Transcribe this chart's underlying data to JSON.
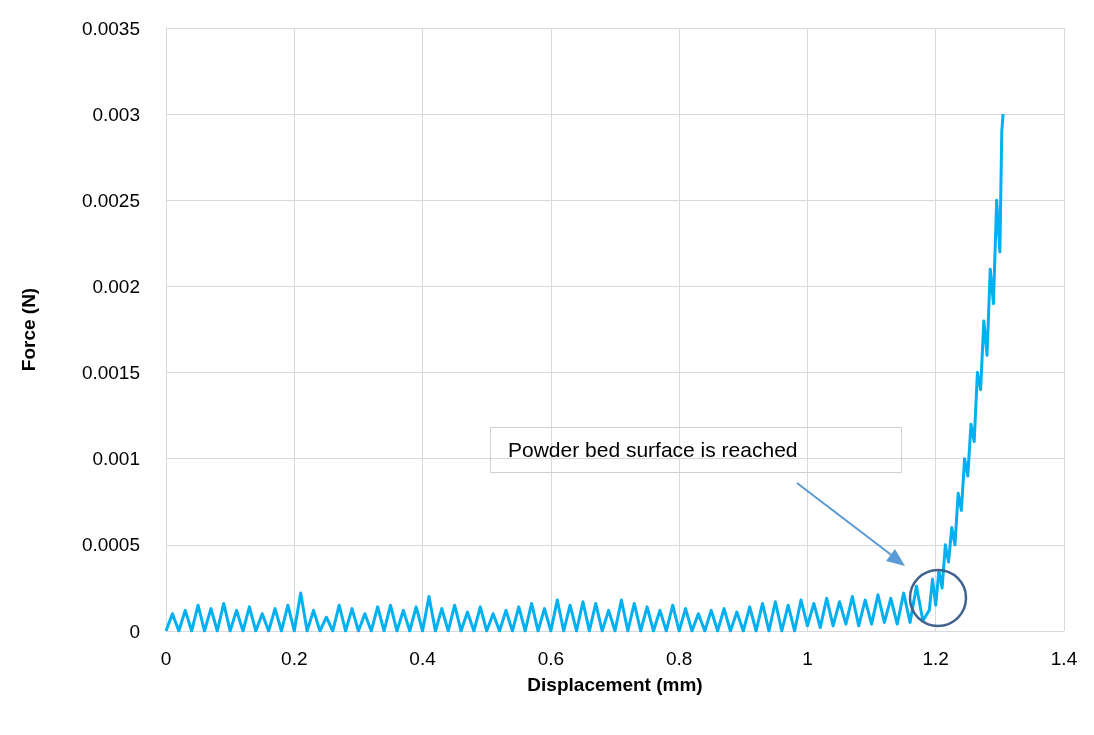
{
  "chart_data": {
    "type": "line",
    "xlabel": "Displacement (mm)",
    "ylabel": "Force (N)",
    "xlim": [
      0,
      1.4
    ],
    "xticks": [
      0,
      0.2,
      0.4,
      0.6,
      0.8,
      1,
      1.2,
      1.4
    ],
    "ylim": [
      0,
      0.0035
    ],
    "yticks": [
      0,
      0.0005,
      0.001,
      0.0015,
      0.002,
      0.0025,
      0.003,
      0.0035
    ],
    "grid": true,
    "marker": "none",
    "line_style": "solid",
    "annotations": [
      "Powder bed surface is reached"
    ],
    "series": [
      {
        "color": "#00b0f0",
        "x": [
          0,
          0.01,
          0.02,
          0.03,
          0.04,
          0.05,
          0.06,
          0.07,
          0.08,
          0.09,
          0.1,
          0.11,
          0.12,
          0.13,
          0.14,
          0.15,
          0.16,
          0.17,
          0.18,
          0.19,
          0.2,
          0.21,
          0.22,
          0.23,
          0.24,
          0.25,
          0.26,
          0.27,
          0.28,
          0.29,
          0.3,
          0.31,
          0.32,
          0.33,
          0.34,
          0.35,
          0.36,
          0.37,
          0.38,
          0.39,
          0.4,
          0.41,
          0.42,
          0.43,
          0.44,
          0.45,
          0.46,
          0.47,
          0.48,
          0.49,
          0.5,
          0.51,
          0.52,
          0.53,
          0.54,
          0.55,
          0.56,
          0.57,
          0.58,
          0.59,
          0.6,
          0.61,
          0.62,
          0.63,
          0.64,
          0.65,
          0.66,
          0.67,
          0.68,
          0.69,
          0.7,
          0.71,
          0.72,
          0.73,
          0.74,
          0.75,
          0.76,
          0.77,
          0.78,
          0.79,
          0.8,
          0.81,
          0.82,
          0.83,
          0.84,
          0.85,
          0.86,
          0.87,
          0.88,
          0.89,
          0.9,
          0.91,
          0.92,
          0.93,
          0.94,
          0.95,
          0.96,
          0.97,
          0.98,
          0.99,
          1,
          1.01,
          1.02,
          1.03,
          1.04,
          1.05,
          1.06,
          1.07,
          1.08,
          1.09,
          1.1,
          1.11,
          1.12,
          1.13,
          1.14,
          1.15,
          1.16,
          1.17,
          1.18,
          1.19,
          1.195,
          1.2,
          1.205,
          1.21,
          1.215,
          1.22,
          1.225,
          1.23,
          1.235,
          1.24,
          1.245,
          1.25,
          1.255,
          1.26,
          1.265,
          1.27,
          1.275,
          1.28,
          1.285,
          1.29,
          1.295,
          1.3,
          1.303,
          1.305
        ],
        "values": [
          0,
          0.0001,
          0,
          0.00012,
          0,
          0.00015,
          0,
          0.00013,
          0,
          0.00016,
          0,
          0.00012,
          0,
          0.00014,
          0,
          0.0001,
          0,
          0.00013,
          0,
          0.00015,
          0,
          0.00022,
          0,
          0.00012,
          0,
          8e-05,
          0,
          0.00015,
          0,
          0.00013,
          0,
          0.0001,
          0,
          0.00014,
          0,
          0.00015,
          0,
          0.00012,
          0,
          0.00014,
          0,
          0.0002,
          0,
          0.00013,
          0,
          0.00015,
          0,
          0.00011,
          0,
          0.00014,
          0,
          0.0001,
          0,
          0.00012,
          0,
          0.00014,
          0,
          0.00016,
          0,
          0.00013,
          0,
          0.00018,
          0,
          0.00015,
          0,
          0.00017,
          0,
          0.00016,
          0,
          0.00012,
          0,
          0.00018,
          0,
          0.00016,
          0,
          0.00014,
          0,
          0.00012,
          0,
          0.00015,
          0,
          0.00013,
          0,
          0.0001,
          0,
          0.00012,
          0,
          0.00013,
          0,
          0.00011,
          0,
          0.00014,
          0,
          0.00016,
          0,
          0.00017,
          0,
          0.00015,
          0,
          0.00018,
          3e-05,
          0.00016,
          2e-05,
          0.00019,
          3e-05,
          0.00017,
          4e-05,
          0.0002,
          3e-05,
          0.00018,
          4e-05,
          0.00021,
          5e-05,
          0.00019,
          4e-05,
          0.00022,
          5e-05,
          0.00026,
          6e-05,
          0.00012,
          0.0003,
          0.00015,
          0.00035,
          0.00025,
          0.0005,
          0.0004,
          0.0006,
          0.0005,
          0.0008,
          0.0007,
          0.001,
          0.0009,
          0.0012,
          0.0011,
          0.0015,
          0.0014,
          0.0018,
          0.0016,
          0.0021,
          0.0019,
          0.0025,
          0.0022,
          0.0029,
          0.003
        ]
      }
    ]
  }
}
